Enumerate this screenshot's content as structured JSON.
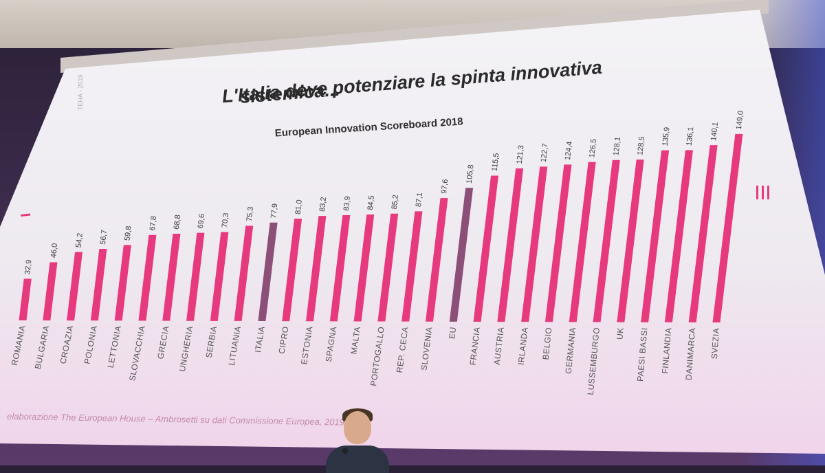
{
  "slide": {
    "title_line1": "L'Italia deve potenziare la spinta innovativa",
    "title_line2": "sistemica...",
    "source": "elaborazione The European House – Ambrosetti su dati Commissione Europea, 2019",
    "side_logo": "III",
    "vertical_note": "TEHA - 2019"
  },
  "chart_data": {
    "type": "bar",
    "title": "European Innovation Scoreboard 2018",
    "categories": [
      "ROMANIA",
      "BULGARIA",
      "CROAZIA",
      "POLONIA",
      "LETTONIA",
      "SLOVACCHIA",
      "GRECIA",
      "UNGHERIA",
      "SERBIA",
      "LITUANIA",
      "ITALIA",
      "CIPRO",
      "ESTONIA",
      "SPAGNA",
      "MALTA",
      "PORTOGALLO",
      "REP. CECA",
      "SLOVENIA",
      "EU",
      "FRANCIA",
      "AUSTRIA",
      "IRLANDA",
      "BELGIO",
      "GERMANIA",
      "LUSSEMBURGO",
      "UK",
      "PAESI BASSI",
      "FINLANDIA",
      "DANIMARCA",
      "SVEZIA"
    ],
    "values": [
      32.9,
      46.0,
      54.2,
      56.7,
      59.8,
      67.8,
      68.8,
      69.6,
      70.3,
      75.3,
      77.9,
      81.0,
      83.2,
      83.9,
      84.5,
      85.2,
      87.1,
      97.6,
      105.8,
      115.5,
      121.3,
      122.7,
      124.4,
      126.5,
      128.1,
      128.5,
      135.9,
      136.1,
      140.1,
      149.0
    ],
    "value_labels": [
      "32,9",
      "46,0",
      "54,2",
      "56,7",
      "59,8",
      "67,8",
      "68,8",
      "69,6",
      "70,3",
      "75,3",
      "77,9",
      "81,0",
      "83,2",
      "83,9",
      "84,5",
      "85,2",
      "87,1",
      "97,6",
      "105,8",
      "115,5",
      "121,3",
      "122,7",
      "124,4",
      "126,5",
      "128,1",
      "128,5",
      "135,9",
      "136,1",
      "140,1",
      "149,0"
    ],
    "highlight": {
      "ITALIA": "#8c4f78",
      "EU": "#8c4f78"
    },
    "colors": {
      "bar": "#e6397e",
      "highlight": "#8c4f78"
    },
    "ylim": [
      0,
      160
    ]
  }
}
